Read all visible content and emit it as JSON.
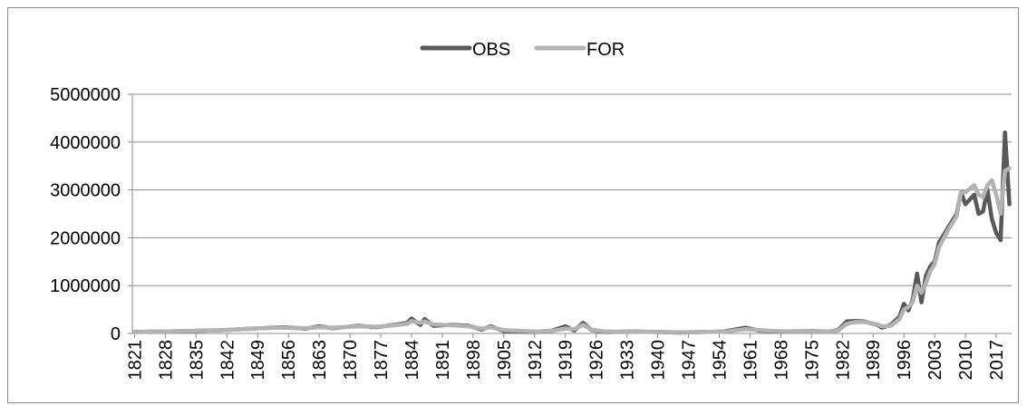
{
  "chart_data": {
    "type": "line",
    "title": "",
    "xlabel": "",
    "ylabel": "",
    "x_start": 1821,
    "x_end": 2020,
    "x_tick_labels": [
      "1821",
      "1828",
      "1835",
      "1842",
      "1849",
      "1856",
      "1863",
      "1870",
      "1877",
      "1884",
      "1891",
      "1898",
      "1905",
      "1912",
      "1919",
      "1926",
      "1933",
      "1940",
      "1947",
      "1954",
      "1961",
      "1968",
      "1975",
      "1982",
      "1989",
      "1996",
      "2003",
      "2010",
      "2017"
    ],
    "y_tick_labels": [
      "0",
      "1000000",
      "2000000",
      "3000000",
      "4000000",
      "5000000"
    ],
    "ylim": [
      0,
      5000000
    ],
    "grid": "horizontal",
    "legend_position": "top",
    "series": [
      {
        "name": "OBS",
        "color": "#595959",
        "points": [
          [
            1821,
            30000
          ],
          [
            1830,
            45000
          ],
          [
            1840,
            65000
          ],
          [
            1850,
            110000
          ],
          [
            1855,
            130000
          ],
          [
            1860,
            100000
          ],
          [
            1863,
            150000
          ],
          [
            1866,
            110000
          ],
          [
            1872,
            160000
          ],
          [
            1876,
            130000
          ],
          [
            1880,
            180000
          ],
          [
            1883,
            220000
          ],
          [
            1884,
            310000
          ],
          [
            1886,
            180000
          ],
          [
            1887,
            300000
          ],
          [
            1889,
            160000
          ],
          [
            1893,
            180000
          ],
          [
            1897,
            160000
          ],
          [
            1900,
            80000
          ],
          [
            1902,
            150000
          ],
          [
            1905,
            50000
          ],
          [
            1912,
            30000
          ],
          [
            1916,
            60000
          ],
          [
            1919,
            150000
          ],
          [
            1921,
            60000
          ],
          [
            1923,
            220000
          ],
          [
            1925,
            70000
          ],
          [
            1928,
            30000
          ],
          [
            1935,
            40000
          ],
          [
            1940,
            30000
          ],
          [
            1945,
            20000
          ],
          [
            1950,
            30000
          ],
          [
            1955,
            40000
          ],
          [
            1960,
            120000
          ],
          [
            1963,
            60000
          ],
          [
            1968,
            40000
          ],
          [
            1975,
            50000
          ],
          [
            1979,
            40000
          ],
          [
            1981,
            70000
          ],
          [
            1983,
            250000
          ],
          [
            1985,
            260000
          ],
          [
            1987,
            250000
          ],
          [
            1990,
            180000
          ],
          [
            1991,
            120000
          ],
          [
            1993,
            180000
          ],
          [
            1995,
            350000
          ],
          [
            1996,
            620000
          ],
          [
            1997,
            480000
          ],
          [
            1998,
            700000
          ],
          [
            1999,
            1250000
          ],
          [
            2000,
            650000
          ],
          [
            2001,
            1200000
          ],
          [
            2002,
            1400000
          ],
          [
            2003,
            1500000
          ],
          [
            2004,
            1900000
          ],
          [
            2006,
            2200000
          ],
          [
            2008,
            2500000
          ],
          [
            2009,
            2950000
          ],
          [
            2010,
            2700000
          ],
          [
            2012,
            2900000
          ],
          [
            2013,
            2500000
          ],
          [
            2014,
            2550000
          ],
          [
            2015,
            3000000
          ],
          [
            2016,
            2400000
          ],
          [
            2017,
            2100000
          ],
          [
            2018,
            1950000
          ],
          [
            2019,
            4200000
          ],
          [
            2020,
            2700000
          ]
        ]
      },
      {
        "name": "FOR",
        "color": "#b3b3b3",
        "points": [
          [
            1821,
            30000
          ],
          [
            1830,
            45000
          ],
          [
            1840,
            65000
          ],
          [
            1850,
            110000
          ],
          [
            1855,
            120000
          ],
          [
            1860,
            110000
          ],
          [
            1863,
            130000
          ],
          [
            1866,
            120000
          ],
          [
            1872,
            150000
          ],
          [
            1876,
            140000
          ],
          [
            1880,
            170000
          ],
          [
            1883,
            200000
          ],
          [
            1884,
            260000
          ],
          [
            1886,
            220000
          ],
          [
            1887,
            250000
          ],
          [
            1889,
            190000
          ],
          [
            1893,
            170000
          ],
          [
            1897,
            150000
          ],
          [
            1900,
            100000
          ],
          [
            1902,
            130000
          ],
          [
            1905,
            70000
          ],
          [
            1912,
            40000
          ],
          [
            1916,
            55000
          ],
          [
            1919,
            100000
          ],
          [
            1921,
            90000
          ],
          [
            1923,
            180000
          ],
          [
            1925,
            80000
          ],
          [
            1928,
            40000
          ],
          [
            1935,
            35000
          ],
          [
            1940,
            30000
          ],
          [
            1945,
            25000
          ],
          [
            1950,
            30000
          ],
          [
            1955,
            35000
          ],
          [
            1960,
            90000
          ],
          [
            1963,
            70000
          ],
          [
            1968,
            45000
          ],
          [
            1975,
            45000
          ],
          [
            1979,
            40000
          ],
          [
            1981,
            60000
          ],
          [
            1983,
            200000
          ],
          [
            1985,
            240000
          ],
          [
            1987,
            240000
          ],
          [
            1990,
            190000
          ],
          [
            1991,
            150000
          ],
          [
            1993,
            160000
          ],
          [
            1995,
            300000
          ],
          [
            1996,
            500000
          ],
          [
            1997,
            550000
          ],
          [
            1998,
            650000
          ],
          [
            1999,
            1000000
          ],
          [
            2000,
            850000
          ],
          [
            2001,
            1050000
          ],
          [
            2002,
            1300000
          ],
          [
            2003,
            1450000
          ],
          [
            2004,
            1800000
          ],
          [
            2006,
            2150000
          ],
          [
            2008,
            2450000
          ],
          [
            2009,
            2950000
          ],
          [
            2010,
            2950000
          ],
          [
            2012,
            3100000
          ],
          [
            2013,
            2900000
          ],
          [
            2014,
            2850000
          ],
          [
            2015,
            3100000
          ],
          [
            2016,
            3200000
          ],
          [
            2017,
            2900000
          ],
          [
            2018,
            2500000
          ],
          [
            2019,
            3400000
          ],
          [
            2020,
            3450000
          ]
        ]
      }
    ]
  }
}
